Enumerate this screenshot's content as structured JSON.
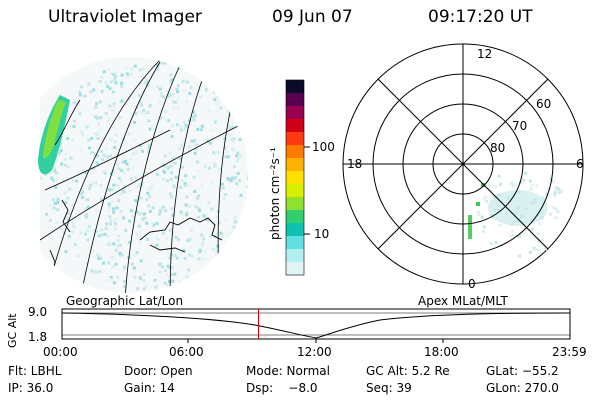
{
  "header": {
    "instrument": "Ultraviolet Imager",
    "date": "09 Jun 07",
    "time": "09:17:20 UT"
  },
  "colorbar": {
    "unit_label": "photon cm⁻²s⁻¹",
    "ticks": [
      "100",
      "10"
    ],
    "colors": [
      "#0a0a2a",
      "#5a0050",
      "#9a0050",
      "#d00018",
      "#ff3a10",
      "#ff7a00",
      "#ffb000",
      "#ffe000",
      "#d8f000",
      "#90e030",
      "#30d070",
      "#10c0b0",
      "#60e0e0",
      "#b0f0f0",
      "#e0f4f4"
    ]
  },
  "polar": {
    "mlt_labels": [
      "12",
      "18",
      "6",
      "0"
    ],
    "lat_labels": [
      "60",
      "70",
      "80"
    ]
  },
  "timeline": {
    "left_label": "Geographic Lat/Lon",
    "right_label": "Apex MLat/MLT",
    "ylabel": "GC Alt",
    "y_ticks": [
      "9.0",
      "1.8"
    ],
    "x_ticks": [
      "00:00",
      "06:00",
      "12:00",
      "18:00",
      "23:59"
    ],
    "marker_time": "09:17",
    "marker_color": "#d00000"
  },
  "info": {
    "row1": [
      "Flt: LBHL",
      "Door: Open",
      "Mode: Normal",
      "GC Alt: 5.2 Re",
      "GLat: −55.2"
    ],
    "row2": [
      "IP: 36.0",
      "Gain: 14",
      "Dsp:    −8.0",
      "Seq: 39",
      "GLon: 270.0"
    ]
  }
}
